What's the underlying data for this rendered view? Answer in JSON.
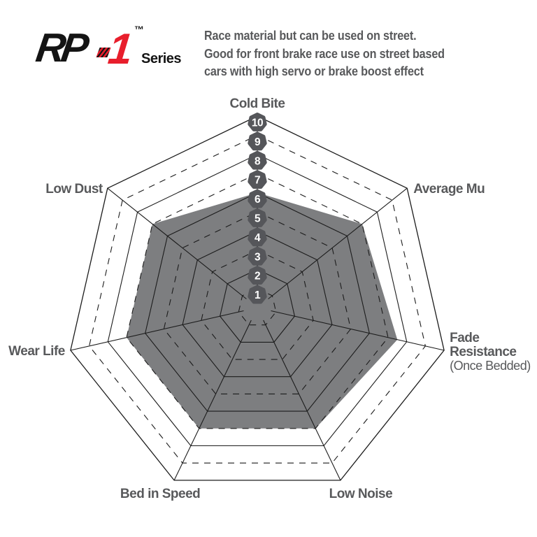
{
  "logo": {
    "brand_prefix": "RP",
    "brand_suffix": "1",
    "trademark": "™",
    "series_label": "Series"
  },
  "description": {
    "lines": [
      "Race material but can be used on street.",
      "Good for front brake race use on street based",
      "cars with high servo or brake boost effect"
    ]
  },
  "colors": {
    "accent_red": "#e81e2c",
    "label_gray": "#58595b",
    "fill_gray": "#7d7e80",
    "badge_gray": "#55565a",
    "line_black": "#1c1c1c",
    "background": "#ffffff"
  },
  "chart_data": {
    "type": "radar",
    "title": "",
    "max": 10,
    "scale_ticks": [
      1,
      2,
      3,
      4,
      5,
      6,
      7,
      8,
      9,
      10
    ],
    "categories": [
      "Cold Bite",
      "Average Mu",
      "Fade Resistance",
      "Low Noise",
      "Bed in Speed",
      "Wear Life",
      "Low Dust"
    ],
    "category_notes": {
      "Fade Resistance": "(Once Bedded)"
    },
    "values": [
      6,
      7,
      7.5,
      7,
      7,
      7,
      7
    ],
    "grid": "10 concentric heptagon rings, even rings solid, odd rings dashed, solid spokes",
    "legend_position": "none"
  }
}
